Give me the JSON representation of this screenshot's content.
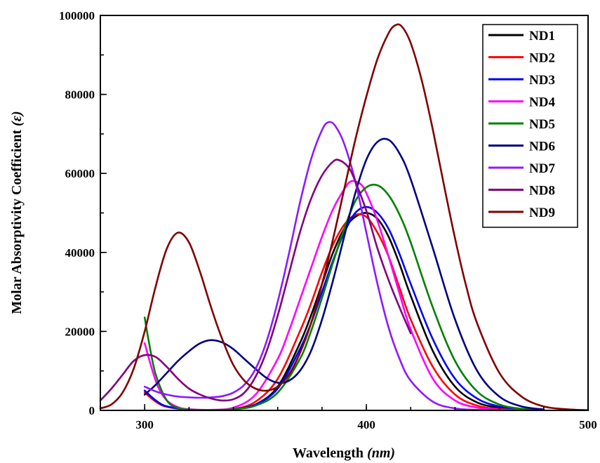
{
  "chart_data": {
    "type": "line",
    "xlabel": "Wavelength",
    "xlabel_unit": "(nm)",
    "ylabel": "Molar Absorptivity Coefficient",
    "ylabel_unit": "(ε)",
    "xlim": [
      280,
      500
    ],
    "ylim": [
      0,
      100000
    ],
    "x_ticks": [
      300,
      400,
      500
    ],
    "y_ticks": [
      0,
      20000,
      40000,
      60000,
      80000,
      100000
    ],
    "grid": false,
    "legend_position": "top-right",
    "series": [
      {
        "name": "ND1",
        "color": "#000000",
        "x": [
          300,
          305,
          310,
          320,
          330,
          340,
          350,
          360,
          370,
          375,
          380,
          385,
          390,
          395,
          400,
          405,
          410,
          415,
          420,
          430,
          440,
          450,
          460,
          470,
          480
        ],
        "y": [
          5000,
          2500,
          1000,
          200,
          100,
          300,
          1500,
          6000,
          17000,
          24000,
          32000,
          40000,
          46000,
          49000,
          50000,
          48500,
          44000,
          37000,
          29000,
          15000,
          6000,
          2000,
          700,
          250,
          100
        ]
      },
      {
        "name": "ND2",
        "color": "#ff0000",
        "x": [
          300,
          305,
          310,
          320,
          330,
          340,
          350,
          360,
          370,
          375,
          380,
          385,
          390,
          395,
          400,
          405,
          410,
          415,
          420,
          430,
          440,
          450,
          460,
          470,
          480
        ],
        "y": [
          4500,
          2200,
          900,
          200,
          100,
          350,
          2200,
          8000,
          20000,
          27000,
          35000,
          42000,
          47000,
          49500,
          49000,
          45000,
          39000,
          31000,
          23000,
          11000,
          4000,
          1200,
          350,
          100,
          50
        ]
      },
      {
        "name": "ND3",
        "color": "#0000ff",
        "x": [
          300,
          305,
          310,
          320,
          330,
          340,
          350,
          360,
          370,
          375,
          380,
          385,
          390,
          395,
          400,
          405,
          410,
          415,
          420,
          430,
          440,
          450,
          460,
          470,
          480
        ],
        "y": [
          5000,
          2500,
          1000,
          200,
          100,
          300,
          1500,
          5500,
          15500,
          22000,
          30000,
          38000,
          45000,
          50000,
          51500,
          50000,
          46000,
          39500,
          32000,
          18000,
          8000,
          3000,
          1000,
          300,
          100
        ]
      },
      {
        "name": "ND4",
        "color": "#ff00ff",
        "x": [
          300,
          303,
          306,
          310,
          315,
          320,
          330,
          340,
          350,
          360,
          365,
          370,
          375,
          380,
          385,
          390,
          393,
          397,
          400,
          405,
          410,
          415,
          420,
          430,
          440,
          450,
          460,
          470,
          480
        ],
        "y": [
          17000,
          11000,
          6000,
          2500,
          800,
          300,
          150,
          700,
          4000,
          13000,
          20000,
          28000,
          36000,
          44000,
          51000,
          56000,
          58000,
          57500,
          55000,
          48000,
          39000,
          29500,
          20500,
          8000,
          2500,
          700,
          200,
          80,
          50
        ]
      },
      {
        "name": "ND5",
        "color": "#008000",
        "x": [
          300,
          302,
          305,
          310,
          315,
          320,
          330,
          340,
          350,
          360,
          370,
          375,
          380,
          385,
          390,
          395,
          400,
          405,
          410,
          415,
          420,
          430,
          440,
          450,
          460,
          470,
          480
        ],
        "y": [
          23500,
          17000,
          9000,
          2500,
          600,
          200,
          100,
          300,
          1200,
          4500,
          13000,
          20000,
          28500,
          37500,
          46000,
          53000,
          56500,
          57000,
          54500,
          49500,
          42500,
          26000,
          12500,
          4800,
          1500,
          400,
          100
        ]
      },
      {
        "name": "ND6",
        "color": "#000080",
        "x": [
          300,
          305,
          310,
          315,
          320,
          325,
          330,
          335,
          340,
          345,
          350,
          355,
          360,
          365,
          370,
          375,
          380,
          385,
          390,
          395,
          400,
          405,
          410,
          415,
          420,
          430,
          440,
          450,
          460,
          470,
          480
        ],
        "y": [
          4000,
          6500,
          9500,
          12500,
          15000,
          17000,
          17800,
          17200,
          15500,
          13000,
          10500,
          8200,
          7000,
          7500,
          10000,
          15000,
          23000,
          33000,
          44000,
          55000,
          63500,
          68000,
          68500,
          65000,
          58500,
          41000,
          23000,
          10000,
          3500,
          1000,
          250
        ]
      },
      {
        "name": "ND7",
        "color": "#8c1aff",
        "x": [
          300,
          305,
          310,
          315,
          320,
          325,
          330,
          335,
          340,
          345,
          350,
          355,
          360,
          365,
          370,
          375,
          380,
          383,
          386,
          390,
          395,
          400,
          405,
          410,
          415,
          420,
          430,
          440,
          450,
          460
        ],
        "y": [
          6000,
          4800,
          4000,
          3500,
          3300,
          3200,
          3300,
          3600,
          4500,
          6500,
          10500,
          17500,
          27500,
          39500,
          52500,
          63500,
          71000,
          73000,
          72000,
          67500,
          58000,
          45000,
          32000,
          21000,
          13000,
          7500,
          2200,
          500,
          120,
          30
        ]
      },
      {
        "name": "ND8",
        "color": "#800080",
        "x": [
          280,
          285,
          290,
          295,
          300,
          305,
          310,
          315,
          320,
          325,
          330,
          335,
          340,
          345,
          350,
          355,
          360,
          365,
          370,
          375,
          380,
          385,
          388,
          392,
          395,
          400,
          405,
          410,
          415,
          420
        ],
        "y": [
          2500,
          5500,
          9000,
          12500,
          14000,
          13500,
          11000,
          8000,
          5500,
          4000,
          3000,
          2500,
          2800,
          4500,
          8500,
          15000,
          24000,
          34500,
          45000,
          53500,
          59500,
          63000,
          63300,
          61500,
          58000,
          50500,
          41000,
          33000,
          26000,
          19500
        ]
      },
      {
        "name": "ND9",
        "color": "#800000",
        "x": [
          280,
          285,
          290,
          295,
          300,
          305,
          310,
          315,
          320,
          325,
          330,
          335,
          340,
          345,
          350,
          355,
          360,
          365,
          370,
          375,
          380,
          385,
          390,
          395,
          400,
          405,
          410,
          413,
          416,
          420,
          425,
          430,
          435,
          440,
          445,
          450,
          460,
          470,
          480,
          490,
          500
        ],
        "y": [
          500,
          1500,
          4500,
          10500,
          20000,
          31500,
          41000,
          45000,
          42500,
          35000,
          26000,
          18000,
          11500,
          7500,
          5500,
          5000,
          6000,
          9000,
          14500,
          22000,
          32000,
          43500,
          56000,
          68500,
          79500,
          89000,
          95500,
          97500,
          97200,
          93000,
          83500,
          71000,
          57000,
          43500,
          31500,
          22000,
          9500,
          3500,
          1000,
          300,
          50
        ]
      }
    ]
  }
}
